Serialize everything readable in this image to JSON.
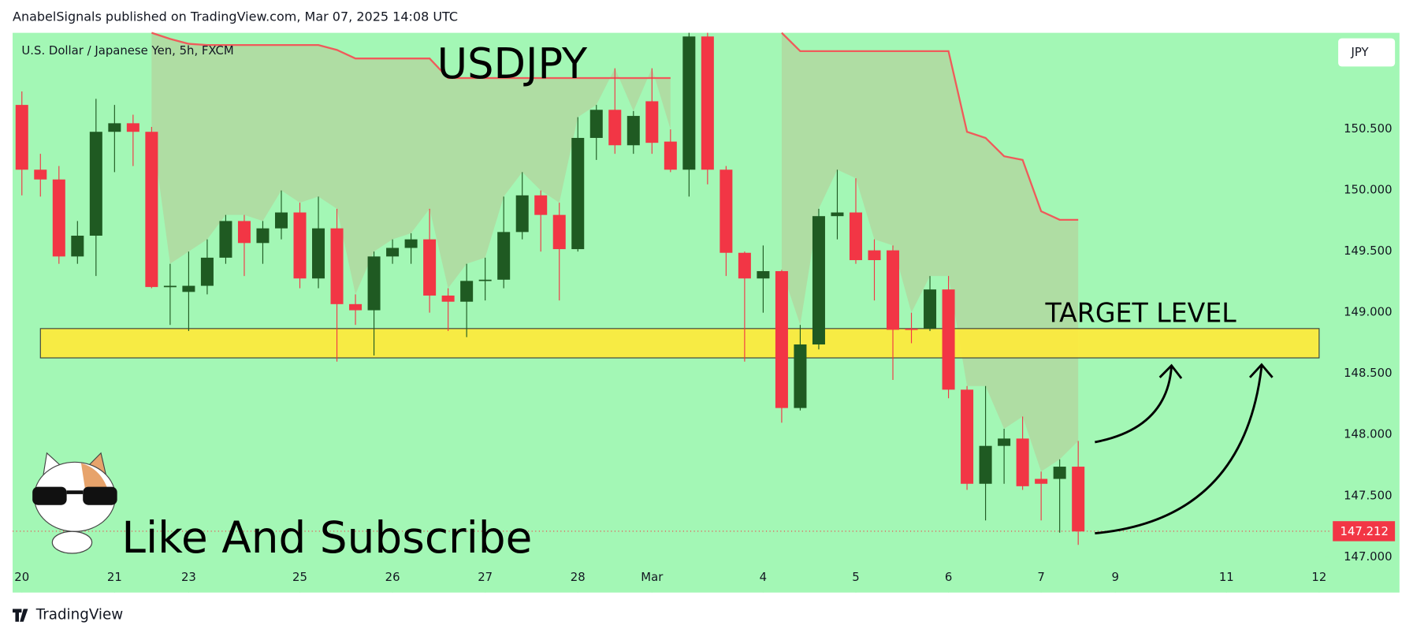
{
  "header": "AnabelSignals published on TradingView.com, Mar 07, 2025 14:08 UTC",
  "footer": "TradingView",
  "chart_data": {
    "type": "candlestick",
    "title": "USDJPY",
    "subtitle": "U.S. Dollar / Japanese Yen, 5h, FXCM",
    "currency": "JPY",
    "annotations": [
      "TARGET LEVEL",
      "Like And Subscribe"
    ],
    "up_color": "#1f5a22",
    "down_color": "#f23645",
    "open": [
      150.7,
      150.17,
      150.09,
      149.46,
      149.63,
      150.48,
      150.55,
      150.48,
      149.21,
      149.17,
      149.22,
      149.45,
      149.75,
      149.57,
      149.69,
      149.82,
      149.28,
      149.69,
      149.07,
      149.02,
      149.46,
      149.53,
      149.6,
      149.14,
      149.09,
      149.26,
      149.27,
      149.66,
      149.96,
      149.8,
      149.52,
      150.43,
      150.66,
      150.37,
      150.73,
      150.4,
      150.17,
      151.26,
      150.17,
      149.49,
      149.28,
      149.34,
      148.22,
      148.74,
      149.79,
      149.82,
      149.51,
      149.51,
      148.87,
      148.87,
      149.19,
      148.37,
      147.6,
      147.91,
      147.97,
      147.64,
      147.64,
      147.74
    ],
    "high": [
      150.81,
      150.3,
      150.2,
      149.75,
      150.75,
      150.7,
      150.62,
      150.52,
      149.4,
      149.5,
      149.6,
      149.8,
      149.8,
      149.75,
      150.0,
      149.9,
      149.95,
      149.85,
      149.15,
      149.5,
      149.6,
      149.65,
      149.85,
      149.2,
      149.4,
      149.45,
      149.95,
      150.15,
      150.0,
      149.9,
      150.6,
      150.7,
      151.0,
      150.65,
      151.0,
      150.5,
      151.3,
      151.3,
      150.2,
      149.5,
      149.55,
      149.35,
      148.9,
      149.85,
      150.17,
      150.1,
      149.6,
      149.55,
      149.0,
      149.3,
      149.3,
      148.4,
      148.4,
      148.05,
      148.15,
      147.7,
      147.8,
      147.95
    ],
    "low": [
      149.96,
      149.95,
      149.4,
      149.4,
      149.3,
      150.15,
      150.2,
      149.2,
      148.9,
      148.85,
      149.15,
      149.4,
      149.3,
      149.4,
      149.6,
      149.2,
      149.2,
      148.6,
      148.9,
      148.65,
      149.4,
      149.4,
      149.0,
      148.85,
      148.8,
      149.1,
      149.2,
      149.6,
      149.5,
      149.1,
      149.5,
      150.25,
      150.3,
      150.3,
      150.3,
      150.15,
      149.95,
      150.05,
      149.3,
      148.6,
      149.0,
      148.1,
      148.2,
      148.7,
      149.6,
      149.4,
      149.1,
      148.45,
      148.75,
      148.85,
      148.3,
      147.55,
      147.3,
      147.6,
      147.55,
      147.3,
      147.2,
      147.1
    ],
    "close": [
      150.17,
      150.09,
      149.46,
      149.63,
      150.48,
      150.55,
      150.48,
      149.21,
      149.22,
      149.22,
      149.45,
      149.75,
      149.57,
      149.69,
      149.82,
      149.28,
      149.69,
      149.07,
      149.02,
      149.46,
      149.53,
      149.6,
      149.14,
      149.09,
      149.26,
      149.27,
      149.66,
      149.96,
      149.8,
      149.52,
      150.43,
      150.66,
      150.37,
      150.61,
      150.39,
      150.17,
      151.26,
      150.17,
      149.49,
      149.28,
      149.34,
      148.22,
      148.74,
      149.79,
      149.82,
      149.43,
      149.43,
      148.86,
      148.86,
      149.19,
      148.37,
      147.6,
      147.91,
      147.97,
      147.58,
      147.6,
      147.74,
      147.21
    ],
    "line": {
      "color": "#f05a5a",
      "values": [
        null,
        null,
        null,
        null,
        null,
        null,
        null,
        151.29,
        151.24,
        151.2,
        151.19,
        151.19,
        151.19,
        151.19,
        151.19,
        151.19,
        151.19,
        151.15,
        151.08,
        151.08,
        151.08,
        151.08,
        151.08,
        150.92,
        150.92,
        150.92,
        150.92,
        150.92,
        150.92,
        150.92,
        150.92,
        150.92,
        150.92,
        150.92,
        150.92,
        150.92,
        null,
        null,
        null,
        null,
        null,
        151.29,
        151.14,
        151.14,
        151.14,
        151.14,
        151.14,
        151.14,
        151.14,
        151.14,
        151.14,
        150.48,
        150.43,
        150.28,
        150.25,
        149.83,
        149.76,
        149.76
      ]
    },
    "zone": {
      "x": [
        1,
        70
      ],
      "y": [
        148.63,
        148.87
      ],
      "color": "#ffeb3b"
    },
    "last_price": 147.212,
    "xlim": [
      -0.5,
      70.3
    ],
    "xticks": [
      {
        "value": 0,
        "label": "20"
      },
      {
        "value": 5,
        "label": "21"
      },
      {
        "value": 9,
        "label": "23"
      },
      {
        "value": 15,
        "label": "25"
      },
      {
        "value": 20,
        "label": "26"
      },
      {
        "value": 25,
        "label": "27"
      },
      {
        "value": 30,
        "label": "28"
      },
      {
        "value": 34,
        "label": "Mar"
      },
      {
        "value": 40,
        "label": "4"
      },
      {
        "value": 45,
        "label": "5"
      },
      {
        "value": 50,
        "label": "6"
      },
      {
        "value": 55,
        "label": "7"
      },
      {
        "value": 59,
        "label": "9"
      },
      {
        "value": 65,
        "label": "11"
      },
      {
        "value": 70,
        "label": "12"
      }
    ],
    "ylim": [
      146.71,
      151.29
    ],
    "yticks": [
      {
        "value": 147,
        "label": "147.000"
      },
      {
        "value": 147.5,
        "label": "147.500"
      },
      {
        "value": 148,
        "label": "148.000"
      },
      {
        "value": 148.5,
        "label": "148.500"
      },
      {
        "value": 149,
        "label": "149.000"
      },
      {
        "value": 149.5,
        "label": "149.500"
      },
      {
        "value": 150,
        "label": "150.000"
      },
      {
        "value": 150.5,
        "label": "150.500"
      }
    ]
  }
}
